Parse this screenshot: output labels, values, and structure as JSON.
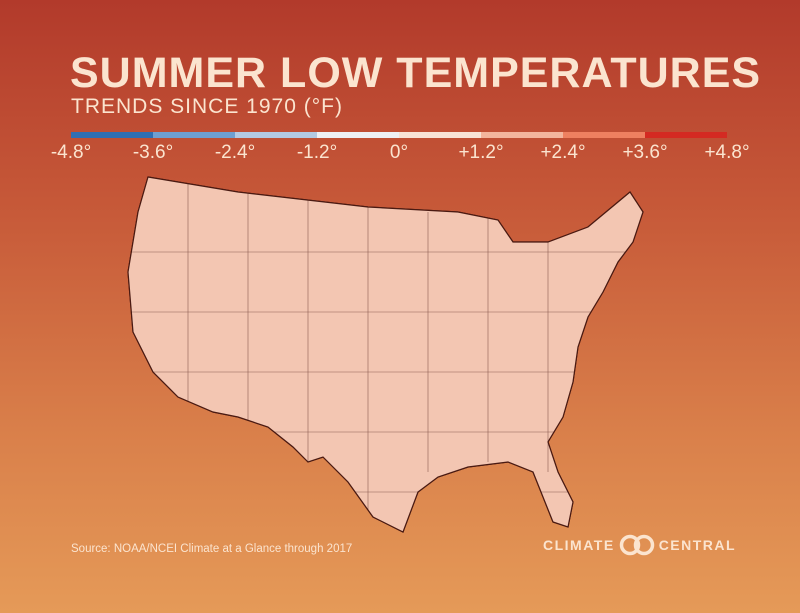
{
  "title": "SUMMER LOW TEMPERATURES",
  "subtitle": "TRENDS SINCE 1970 (°F)",
  "legend": {
    "ticks": [
      "-4.8°",
      "-3.6°",
      "-2.4°",
      "-1.2°",
      "0°",
      "+1.2°",
      "+2.4°",
      "+3.6°",
      "+4.8°"
    ],
    "colors": [
      "#2f6fb3",
      "#6f9fd0",
      "#b3c9e2",
      "#eef0f4",
      "#f8e3d6",
      "#f3b59d",
      "#ee8060",
      "#d42a22"
    ]
  },
  "map": {
    "colors": {
      "cooling_slight": "#f6ebe4",
      "warming_light": "#f3c6b2",
      "warming_medium": "#ef9b80",
      "warming_strong": "#e86a4d",
      "warming_max": "#d42a22"
    }
  },
  "source": "Source: NOAA/NCEI Climate at a Glance through 2017",
  "logo": {
    "left_text": "CLIMATE",
    "right_text": "CENTRAL"
  }
}
